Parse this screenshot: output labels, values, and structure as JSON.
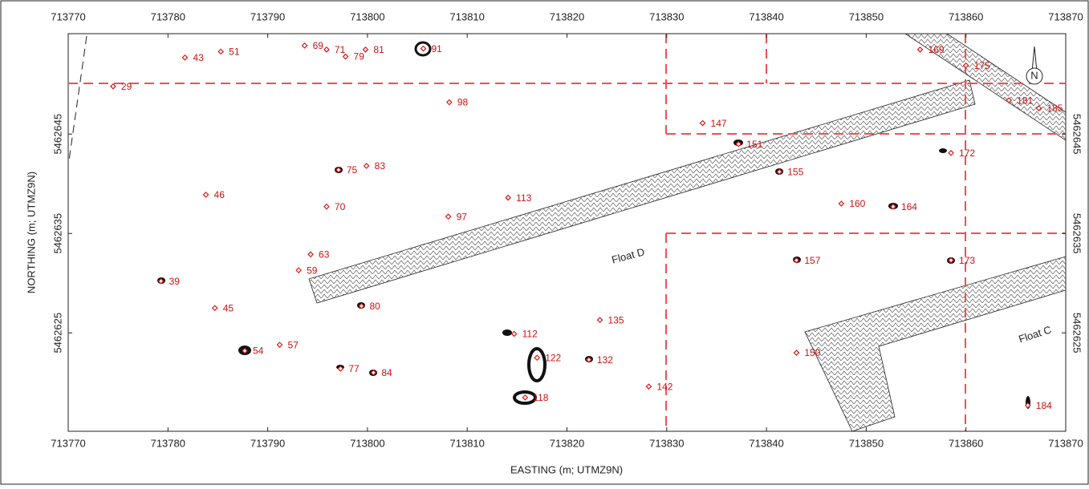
{
  "chart_data": {
    "type": "scatter",
    "x_label": "EASTING (m; UTMZ9N)",
    "y_label": "NORTHING (m; UTMZ9N)",
    "north_label": "N",
    "annotations": [
      "Float D",
      "Float C"
    ],
    "color": "#e01818",
    "xlim": [
      713770,
      713870
    ],
    "ylim": [
      5462615.1,
      5462655.1
    ],
    "xticks": [
      713770,
      713780,
      713790,
      713800,
      713810,
      713820,
      713830,
      713840,
      713850,
      713860,
      713870
    ],
    "yticks": [
      5462625,
      5462635,
      5462645
    ],
    "point_labels": [
      "29",
      "43",
      "51",
      "69",
      "71",
      "79",
      "81",
      "91",
      "98",
      "147",
      "151",
      "169",
      "175",
      "181",
      "185",
      "172",
      "155",
      "75",
      "83",
      "46",
      "113",
      "70",
      "97",
      "160",
      "164",
      "63",
      "59",
      "39",
      "157",
      "173",
      "45",
      "80",
      "135",
      "112",
      "122",
      "132",
      "54",
      "57",
      "77",
      "84",
      "118",
      "142",
      "150",
      "184"
    ],
    "x": [
      713774.5,
      713781.7,
      713785.3,
      713793.7,
      713795.9,
      713797.8,
      713799.8,
      713805.6,
      713808.2,
      713833.6,
      713837.2,
      713855.4,
      713860.0,
      713864.3,
      713867.3,
      713858.5,
      713841.3,
      713797.1,
      713799.9,
      713783.8,
      713814.1,
      713795.9,
      713808.1,
      713847.5,
      713852.7,
      713794.3,
      713793.1,
      713779.3,
      713843.0,
      713858.5,
      713784.7,
      713799.4,
      713823.3,
      713814.7,
      713817.0,
      713822.2,
      713787.7,
      713791.2,
      713797.3,
      713800.6,
      713815.8,
      713828.2,
      713843.0,
      713866.2
    ],
    "values": [
      5462649.8,
      5462652.7,
      5462653.3,
      5462653.9,
      5462653.5,
      5462652.8,
      5462653.5,
      5462653.6,
      5462648.2,
      5462646.1,
      5462644.0,
      5462653.5,
      5462651.9,
      5462648.4,
      5462647.6,
      5462643.1,
      5462641.2,
      5462641.4,
      5462641.8,
      5462638.9,
      5462638.6,
      5462637.7,
      5462636.7,
      5462638.0,
      5462637.7,
      5462632.9,
      5462631.3,
      5462630.2,
      5462632.3,
      5462632.3,
      5462627.5,
      5462627.7,
      5462626.3,
      5462624.9,
      5462622.5,
      5462622.3,
      5462623.2,
      5462623.8,
      5462621.4,
      5462621.0,
      5462618.5,
      5462619.6,
      5462623.0,
      5462617.7
    ]
  }
}
